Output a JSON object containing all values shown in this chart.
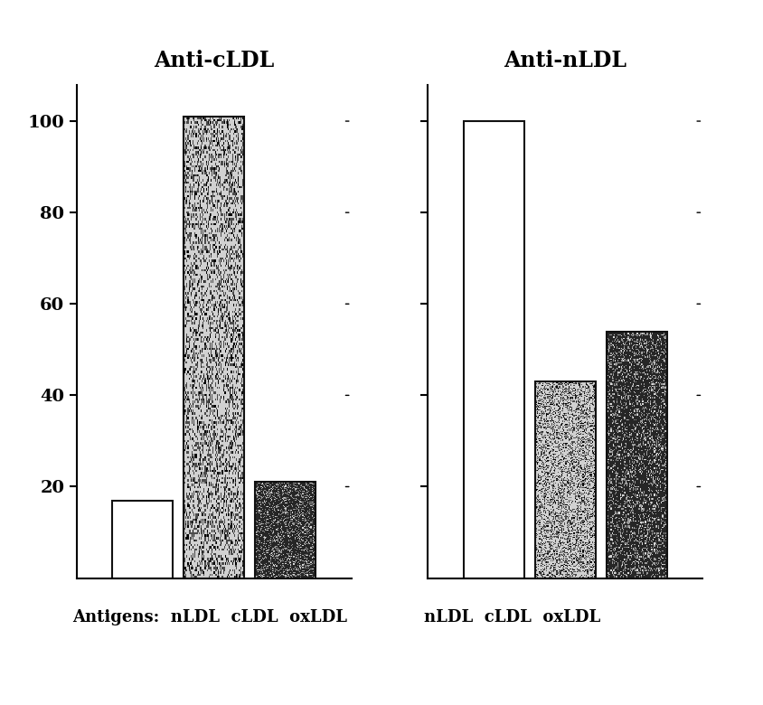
{
  "left_title": "Anti-cLDL",
  "right_title": "Anti-nLDL",
  "left_label": "Antigens:  nLDL  cLDL  oxLDL",
  "right_label": "nLDL  cLDL  oxLDL",
  "ylim": [
    0,
    108
  ],
  "yticks": [
    20,
    40,
    60,
    80,
    100
  ],
  "left_bars": {
    "nLDL": {
      "value": 17,
      "color": "white",
      "edgecolor": "#111111",
      "hatch": null
    },
    "cLDL": {
      "value": 101,
      "color": "#d0d0d0",
      "edgecolor": "#111111",
      "hatch": "light_stipple"
    },
    "oxLDL": {
      "value": 21,
      "color": "#2a2a2a",
      "edgecolor": "#111111",
      "hatch": "dark_stipple"
    }
  },
  "right_bars": {
    "nLDL": {
      "value": 100,
      "color": "white",
      "edgecolor": "#111111",
      "hatch": null
    },
    "cLDL": {
      "value": 43,
      "color": "#d0d0d0",
      "edgecolor": "#111111",
      "hatch": "light_stipple"
    },
    "oxLDL": {
      "value": 54,
      "color": "#2a2a2a",
      "edgecolor": "#111111",
      "hatch": "dark_stipple"
    }
  },
  "bar_width": 0.22,
  "bar_gap": 0.04,
  "background_color": "#ffffff",
  "title_fontsize": 17,
  "tick_fontsize": 14,
  "label_fontsize": 13
}
